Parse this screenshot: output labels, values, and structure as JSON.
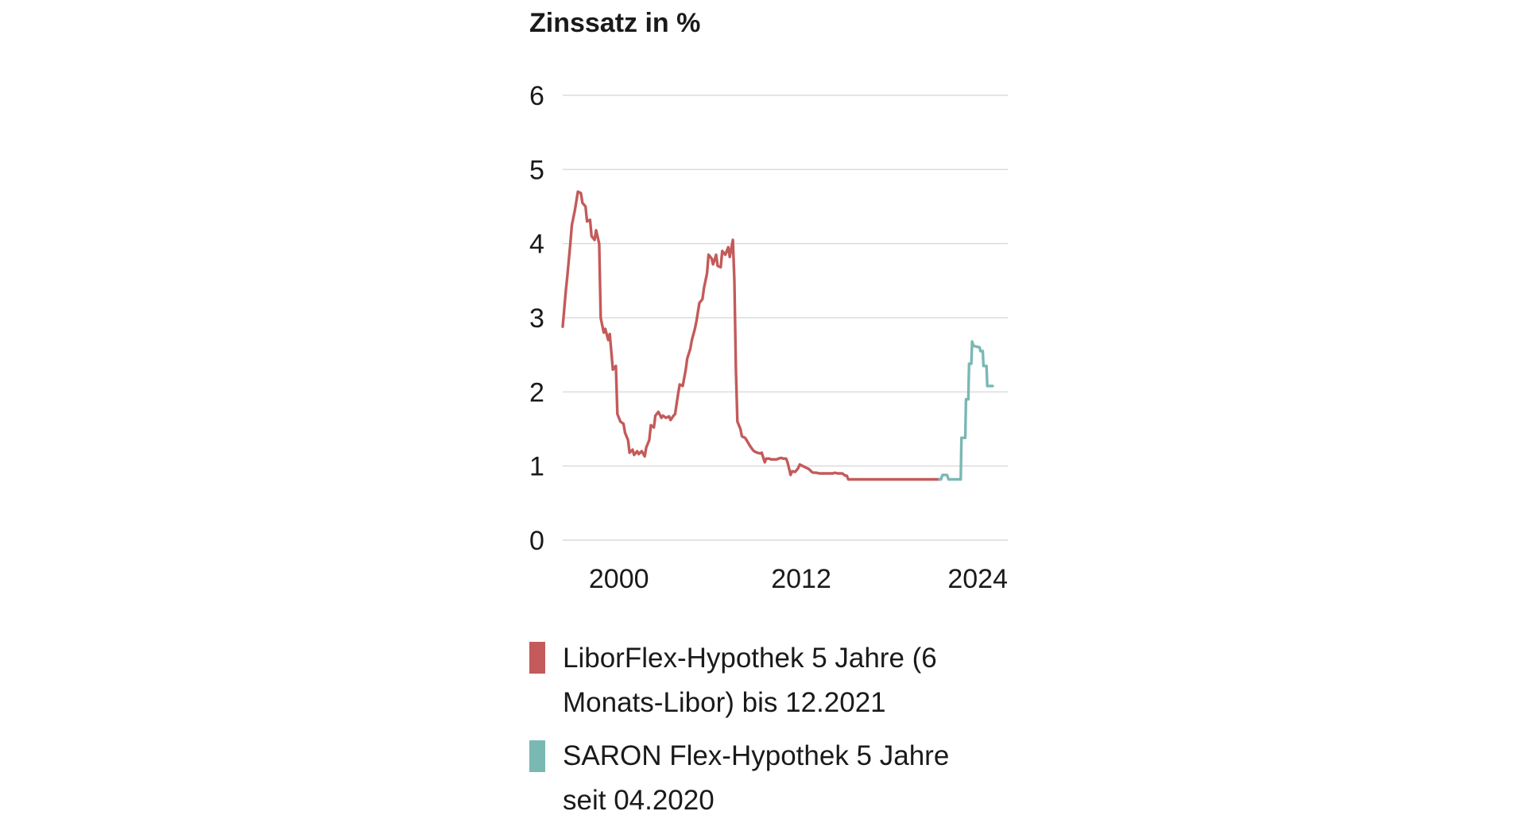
{
  "chart_data": {
    "type": "line",
    "title": "Zinssatz in %",
    "xlabel": "",
    "ylabel": "",
    "xlim": [
      1996.3,
      2025.6
    ],
    "ylim": [
      0,
      6
    ],
    "y_ticks": [
      "0",
      "1",
      "2",
      "3",
      "4",
      "5",
      "6"
    ],
    "x_ticks": [
      {
        "value": 2000,
        "label": "2000"
      },
      {
        "value": 2012,
        "label": "2012"
      },
      {
        "value": 2024,
        "label": "2024"
      }
    ],
    "grid": true,
    "legend_position": "bottom",
    "series": [
      {
        "name": "LiborFlex-Hypothek 5 Jahre (6 Monats-Libor) bis 12.2021",
        "color": "#c45a5a",
        "points": [
          [
            1996.3,
            2.88
          ],
          [
            1996.5,
            3.35
          ],
          [
            1996.6,
            3.55
          ],
          [
            1996.8,
            4.0
          ],
          [
            1996.9,
            4.25
          ],
          [
            1997.1,
            4.45
          ],
          [
            1997.3,
            4.7
          ],
          [
            1997.5,
            4.68
          ],
          [
            1997.6,
            4.55
          ],
          [
            1997.8,
            4.5
          ],
          [
            1997.9,
            4.3
          ],
          [
            1998.1,
            4.32
          ],
          [
            1998.2,
            4.1
          ],
          [
            1998.4,
            4.05
          ],
          [
            1998.5,
            4.18
          ],
          [
            1998.7,
            4.0
          ],
          [
            1998.8,
            3.0
          ],
          [
            1999.0,
            2.8
          ],
          [
            1999.1,
            2.85
          ],
          [
            1999.3,
            2.7
          ],
          [
            1999.4,
            2.78
          ],
          [
            1999.6,
            2.3
          ],
          [
            1999.8,
            2.35
          ],
          [
            1999.9,
            1.7
          ],
          [
            2000.1,
            1.6
          ],
          [
            2000.3,
            1.57
          ],
          [
            2000.4,
            1.45
          ],
          [
            2000.6,
            1.35
          ],
          [
            2000.7,
            1.18
          ],
          [
            2000.9,
            1.22
          ],
          [
            2001.0,
            1.15
          ],
          [
            2001.2,
            1.2
          ],
          [
            2001.3,
            1.16
          ],
          [
            2001.5,
            1.2
          ],
          [
            2001.7,
            1.13
          ],
          [
            2001.8,
            1.25
          ],
          [
            2002.0,
            1.35
          ],
          [
            2002.1,
            1.55
          ],
          [
            2002.3,
            1.52
          ],
          [
            2002.4,
            1.68
          ],
          [
            2002.6,
            1.73
          ],
          [
            2002.8,
            1.65
          ],
          [
            2002.9,
            1.68
          ],
          [
            2003.1,
            1.65
          ],
          [
            2003.3,
            1.67
          ],
          [
            2003.4,
            1.62
          ],
          [
            2003.6,
            1.68
          ],
          [
            2003.7,
            1.7
          ],
          [
            2003.9,
            1.98
          ],
          [
            2004.0,
            2.1
          ],
          [
            2004.2,
            2.08
          ],
          [
            2004.4,
            2.3
          ],
          [
            2004.5,
            2.45
          ],
          [
            2004.7,
            2.58
          ],
          [
            2004.8,
            2.7
          ],
          [
            2005.0,
            2.85
          ],
          [
            2005.1,
            2.95
          ],
          [
            2005.3,
            3.2
          ],
          [
            2005.5,
            3.25
          ],
          [
            2005.6,
            3.4
          ],
          [
            2005.8,
            3.6
          ],
          [
            2005.9,
            3.85
          ],
          [
            2006.1,
            3.8
          ],
          [
            2006.2,
            3.72
          ],
          [
            2006.4,
            3.85
          ],
          [
            2006.5,
            3.7
          ],
          [
            2006.7,
            3.68
          ],
          [
            2006.8,
            3.9
          ],
          [
            2007.0,
            3.85
          ],
          [
            2007.2,
            3.95
          ],
          [
            2007.3,
            3.82
          ],
          [
            2007.5,
            4.05
          ],
          [
            2007.6,
            3.5
          ],
          [
            2007.7,
            2.3
          ],
          [
            2007.8,
            1.6
          ],
          [
            2008.0,
            1.5
          ],
          [
            2008.1,
            1.4
          ],
          [
            2008.3,
            1.38
          ],
          [
            2008.4,
            1.35
          ],
          [
            2008.6,
            1.28
          ],
          [
            2008.8,
            1.22
          ],
          [
            2008.9,
            1.2
          ],
          [
            2009.1,
            1.18
          ],
          [
            2009.3,
            1.17
          ],
          [
            2009.4,
            1.18
          ],
          [
            2009.6,
            1.05
          ],
          [
            2009.7,
            1.1
          ],
          [
            2009.9,
            1.1
          ],
          [
            2010.0,
            1.09
          ],
          [
            2010.2,
            1.09
          ],
          [
            2010.4,
            1.09
          ],
          [
            2010.5,
            1.1
          ],
          [
            2010.7,
            1.11
          ],
          [
            2010.8,
            1.1
          ],
          [
            2011.0,
            1.1
          ],
          [
            2011.1,
            1.05
          ],
          [
            2011.3,
            0.88
          ],
          [
            2011.4,
            0.93
          ],
          [
            2011.6,
            0.92
          ],
          [
            2011.8,
            0.97
          ],
          [
            2011.9,
            1.02
          ],
          [
            2012.1,
            1.0
          ],
          [
            2012.2,
            0.99
          ],
          [
            2012.4,
            0.97
          ],
          [
            2012.5,
            0.96
          ],
          [
            2012.7,
            0.92
          ],
          [
            2012.8,
            0.91
          ],
          [
            2013.0,
            0.91
          ],
          [
            2013.2,
            0.9
          ],
          [
            2013.3,
            0.9
          ],
          [
            2013.5,
            0.9
          ],
          [
            2013.6,
            0.9
          ],
          [
            2013.8,
            0.9
          ],
          [
            2013.9,
            0.9
          ],
          [
            2014.1,
            0.9
          ],
          [
            2014.2,
            0.91
          ],
          [
            2014.4,
            0.9
          ],
          [
            2014.6,
            0.9
          ],
          [
            2014.7,
            0.9
          ],
          [
            2014.9,
            0.87
          ],
          [
            2015.0,
            0.87
          ],
          [
            2015.1,
            0.82
          ],
          [
            2016.0,
            0.82
          ],
          [
            2017.0,
            0.82
          ],
          [
            2018.0,
            0.82
          ],
          [
            2019.0,
            0.82
          ],
          [
            2020.0,
            0.82
          ],
          [
            2021.0,
            0.82
          ],
          [
            2021.1,
            0.82
          ]
        ]
      },
      {
        "name": "SARON Flex-Hypothek 5 Jahre seit 04.2020",
        "color": "#7ab8b4",
        "points": [
          [
            2021.1,
            0.82
          ],
          [
            2021.2,
            0.82
          ],
          [
            2021.3,
            0.88
          ],
          [
            2021.6,
            0.88
          ],
          [
            2021.7,
            0.82
          ],
          [
            2022.3,
            0.82
          ],
          [
            2022.4,
            0.82
          ],
          [
            2022.5,
            0.82
          ],
          [
            2022.55,
            1.38
          ],
          [
            2022.8,
            1.38
          ],
          [
            2022.85,
            1.9
          ],
          [
            2023.0,
            1.9
          ],
          [
            2023.05,
            2.38
          ],
          [
            2023.2,
            2.38
          ],
          [
            2023.25,
            2.68
          ],
          [
            2023.35,
            2.62
          ],
          [
            2023.75,
            2.6
          ],
          [
            2023.8,
            2.55
          ],
          [
            2023.95,
            2.55
          ],
          [
            2024.0,
            2.35
          ],
          [
            2024.2,
            2.35
          ],
          [
            2024.25,
            2.08
          ],
          [
            2024.6,
            2.08
          ]
        ]
      }
    ]
  },
  "legend": {
    "items": [
      {
        "line1": "LiborFlex-Hypothek 5 Jahre (6",
        "line2": "Monats-Libor) bis 12.2021",
        "color": "#c45a5a"
      },
      {
        "line1": "SARON Flex-Hypothek 5 Jahre",
        "line2": "seit 04.2020",
        "color": "#7ab8b4"
      }
    ]
  }
}
